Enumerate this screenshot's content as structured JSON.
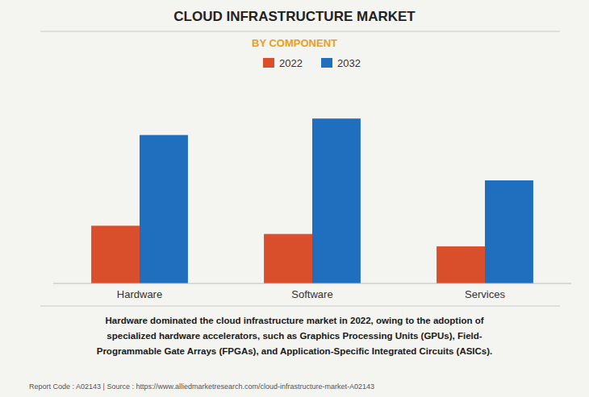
{
  "chart_data": {
    "type": "bar",
    "title": "CLOUD INFRASTRUCTURE MARKET",
    "subtitle": "BY COMPONENT",
    "categories": [
      "Hardware",
      "Software",
      "Services"
    ],
    "series": [
      {
        "name": "2022",
        "color": "#D94F2B",
        "values": [
          28,
          24,
          18
        ]
      },
      {
        "name": "2032",
        "color": "#1F6FBE",
        "values": [
          72,
          80,
          50
        ]
      }
    ],
    "ylim": [
      0,
      100
    ],
    "grid": false,
    "tick_labels": "x",
    "legend": "top",
    "annotations": [
      "Hardware dominated the cloud infrastructure market in 2022, owing to the adoption of",
      "specialized hardware accelerators, such as Graphics Processing Units (GPUs), Field-",
      "Programmable Gate Arrays (FPGAs), and Application-Specific Integrated Circuits (ASICs)."
    ],
    "footer": "Report Code : A02143  |  Source : https://www.alliedmarketresearch.com/cloud-infrastructure-market-A02143"
  }
}
